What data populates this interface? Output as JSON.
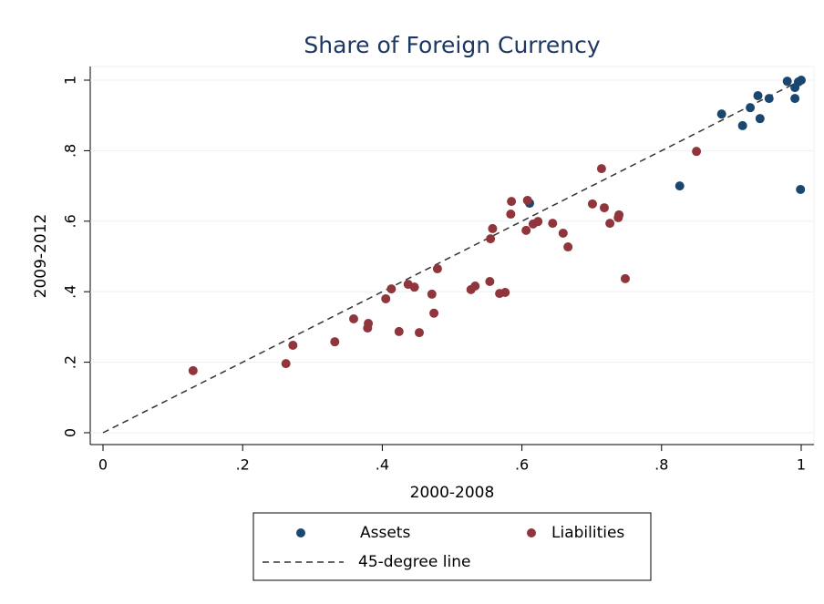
{
  "chart_data": {
    "type": "scatter",
    "title": "Share of Foreign Currency",
    "x_label": "2000-2008",
    "y_label": "2009-2012",
    "xlim": [
      0,
      1
    ],
    "ylim": [
      0,
      1
    ],
    "xticks": [
      0,
      {
        "value": 0.2,
        "label": ".2"
      },
      {
        "value": 0.4,
        "label": ".4"
      },
      {
        "value": 0.6,
        "label": ".6"
      },
      {
        "value": 0.8,
        "label": ".8"
      },
      1
    ],
    "yticks": [
      0,
      {
        "value": 0.2,
        "label": ".2"
      },
      {
        "value": 0.4,
        "label": ".4"
      },
      {
        "value": 0.6,
        "label": ".6"
      },
      {
        "value": 0.8,
        "label": ".8"
      },
      1
    ],
    "grid": true,
    "legend": "bottom",
    "series": [
      {
        "name": "Assets",
        "color": "#1a476f",
        "x": [
          0.611,
          0.826,
          0.886,
          0.916,
          0.927,
          0.938,
          0.941,
          0.954,
          0.98,
          0.991,
          0.991,
          0.996,
          1.0,
          0.999
        ],
        "values": [
          0.651,
          0.7,
          0.904,
          0.871,
          0.922,
          0.956,
          0.891,
          0.948,
          0.997,
          0.979,
          0.948,
          0.995,
          1.0,
          0.69
        ]
      },
      {
        "name": "Liabilities",
        "color": "#90353b",
        "x": [
          0.129,
          0.262,
          0.272,
          0.332,
          0.359,
          0.379,
          0.38,
          0.405,
          0.413,
          0.424,
          0.437,
          0.446,
          0.453,
          0.471,
          0.474,
          0.479,
          0.527,
          0.533,
          0.554,
          0.555,
          0.558,
          0.568,
          0.576,
          0.584,
          0.585,
          0.606,
          0.608,
          0.616,
          0.623,
          0.644,
          0.659,
          0.666,
          0.701,
          0.714,
          0.718,
          0.726,
          0.738,
          0.739,
          0.748,
          0.85
        ],
        "values": [
          0.176,
          0.196,
          0.248,
          0.258,
          0.323,
          0.297,
          0.31,
          0.38,
          0.408,
          0.287,
          0.421,
          0.413,
          0.284,
          0.393,
          0.339,
          0.465,
          0.406,
          0.416,
          0.429,
          0.55,
          0.579,
          0.395,
          0.398,
          0.62,
          0.656,
          0.574,
          0.659,
          0.592,
          0.599,
          0.594,
          0.566,
          0.527,
          0.649,
          0.749,
          0.638,
          0.594,
          0.61,
          0.618,
          0.437,
          0.798
        ]
      }
    ],
    "reference_line": {
      "name": "45-degree line",
      "color": "#333333",
      "x": [
        0,
        1
      ],
      "y": [
        0,
        1
      ]
    }
  }
}
